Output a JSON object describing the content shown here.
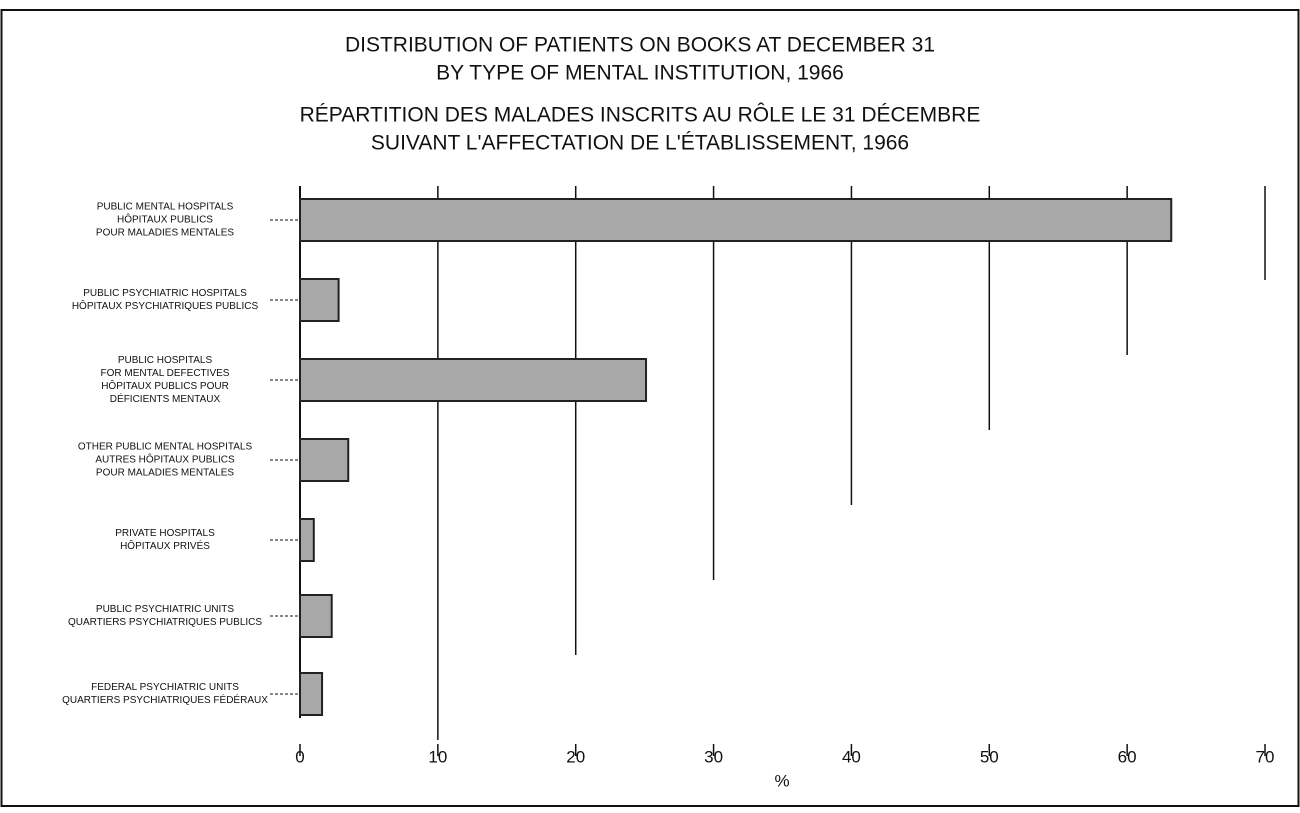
{
  "chart_data": {
    "type": "barh",
    "title": [
      "DISTRIBUTION OF PATIENTS ON BOOKS AT DECEMBER 31",
      "BY TYPE OF MENTAL INSTITUTION, 1966"
    ],
    "subtitle": [
      "RÉPARTITION DES MALADES INSCRITS AU RÔLE LE 31 DÉCEMBRE",
      "SUIVANT L'AFFECTATION DE L'ÉTABLISSEMENT, 1966"
    ],
    "categories": [
      [
        "PUBLIC MENTAL HOSPITALS",
        "HÔPITAUX PUBLICS",
        "POUR MALADIES MENTALES"
      ],
      [
        "PUBLIC PSYCHIATRIC HOSPITALS",
        "HÔPITAUX PSYCHIATRIQUES PUBLICS"
      ],
      [
        "PUBLIC HOSPITALS",
        "FOR MENTAL DEFECTIVES",
        "HÔPITAUX PUBLICS POUR",
        "DÉFICIENTS MENTAUX"
      ],
      [
        "OTHER PUBLIC MENTAL HOSPITALS",
        "AUTRES HÔPITAUX PUBLICS",
        "POUR MALADIES MENTALES"
      ],
      [
        "PRIVATE HOSPITALS",
        "HÔPITAUX PRIVÉS"
      ],
      [
        "PUBLIC PSYCHIATRIC UNITS",
        "QUARTIERS PSYCHIATRIQUES PUBLICS"
      ],
      [
        "FEDERAL PSYCHIATRIC UNITS",
        "QUARTIERS PSYCHIATRIQUES FÉDÉRAUX"
      ]
    ],
    "values": [
      63.2,
      2.8,
      25.1,
      3.5,
      1.0,
      2.3,
      1.6
    ],
    "color": "#a8a8a8",
    "xlabel": "%",
    "xlim": [
      0,
      70
    ],
    "xticks": [
      0,
      10,
      20,
      30,
      40,
      50,
      60,
      70
    ],
    "grid": true
  }
}
